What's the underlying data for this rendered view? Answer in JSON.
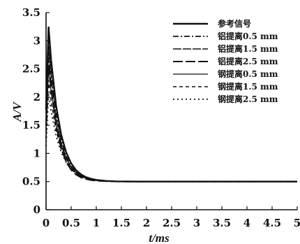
{
  "chart_data": {
    "type": "line",
    "xlabel": "t/ms",
    "ylabel": "A/V",
    "xlim": [
      0,
      5
    ],
    "ylim": [
      0,
      3.5
    ],
    "x_ticks": [
      "0",
      "0.5",
      "1",
      "1.5",
      "2",
      "2.5",
      "3",
      "3.5",
      "4",
      "4.5",
      "5"
    ],
    "y_ticks": [
      "0",
      "0.5",
      "1",
      "1.5",
      "2",
      "2.5",
      "3",
      "3.5"
    ],
    "grid": false,
    "legend_position": "top-right",
    "series": [
      {
        "name": "参考信号",
        "dash": "solid",
        "width": 2.4,
        "peak": 3.25,
        "tau": 0.21,
        "x": [
          0,
          0.05,
          0.1,
          0.2,
          0.3,
          0.4,
          0.5,
          0.6,
          0.7,
          0.8,
          0.9,
          1.0,
          1.2,
          1.4,
          1.6,
          1.8,
          2.0,
          2.5,
          3.0,
          4.0,
          5.0
        ]
      },
      {
        "name": "铝提离0.5 mm",
        "dash": "8,3,2,3",
        "width": 1.8,
        "peak": 3.1,
        "tau": 0.2,
        "x": [
          0,
          0.05,
          0.1,
          0.2,
          0.3,
          0.4,
          0.5,
          0.6,
          0.7,
          0.8,
          0.9,
          1.0,
          1.2,
          1.4,
          1.6,
          1.8,
          2.0,
          2.5,
          3.0,
          4.0,
          5.0
        ]
      },
      {
        "name": "铝提离1.5 mm",
        "dash": "12,2",
        "width": 1.5,
        "peak": 2.9,
        "tau": 0.2,
        "x": [
          0,
          0.05,
          0.1,
          0.2,
          0.3,
          0.4,
          0.5,
          0.6,
          0.7,
          0.8,
          0.9,
          1.0,
          1.2,
          1.4,
          1.6,
          1.8,
          2.0,
          2.5,
          3.0,
          4.0,
          5.0
        ]
      },
      {
        "name": "铝提离2.5 mm",
        "dash": "14,4",
        "width": 2.0,
        "peak": 2.7,
        "tau": 0.19,
        "x": [
          0,
          0.05,
          0.1,
          0.2,
          0.3,
          0.4,
          0.5,
          0.6,
          0.7,
          0.8,
          0.9,
          1.0,
          1.2,
          1.4,
          1.6,
          1.8,
          2.0,
          2.5,
          3.0,
          4.0,
          5.0
        ]
      },
      {
        "name": "钢提离0.5 mm",
        "dash": "solid",
        "width": 1.2,
        "peak": 2.5,
        "tau": 0.22,
        "x": [
          0,
          0.05,
          0.1,
          0.2,
          0.3,
          0.4,
          0.5,
          0.6,
          0.7,
          0.8,
          0.9,
          1.0,
          1.2,
          1.4,
          1.6,
          1.8,
          2.0,
          2.5,
          3.0,
          4.0,
          5.0
        ]
      },
      {
        "name": "钢提离1.5 mm",
        "dash": "5,4",
        "width": 1.6,
        "peak": 2.3,
        "tau": 0.22,
        "x": [
          0,
          0.05,
          0.1,
          0.2,
          0.3,
          0.4,
          0.5,
          0.6,
          0.7,
          0.8,
          0.9,
          1.0,
          1.2,
          1.4,
          1.6,
          1.8,
          2.0,
          2.5,
          3.0,
          4.0,
          5.0
        ]
      },
      {
        "name": "钢提离2.5 mm",
        "dash": "2,4",
        "width": 1.8,
        "peak": 2.05,
        "tau": 0.23,
        "x": [
          0,
          0.05,
          0.1,
          0.2,
          0.3,
          0.4,
          0.5,
          0.6,
          0.7,
          0.8,
          0.9,
          1.0,
          1.2,
          1.4,
          1.6,
          1.8,
          2.0,
          2.5,
          3.0,
          4.0,
          5.0
        ]
      }
    ],
    "baseline": 0.5,
    "peak_x": 0.05
  }
}
